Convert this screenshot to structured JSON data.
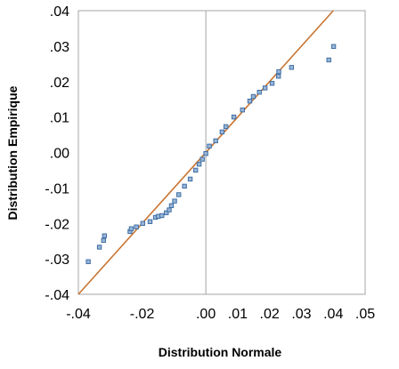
{
  "chart_data": {
    "type": "scatter",
    "title": "",
    "xlabel": "Distribution Normale",
    "ylabel": "Distribution Empirique",
    "xlim": [
      -0.04,
      0.05
    ],
    "ylim": [
      -0.04,
      0.04
    ],
    "x_ticks": [
      -0.04,
      -0.02,
      0.0,
      0.01,
      0.02,
      0.03,
      0.04,
      0.05
    ],
    "x_tick_labels": [
      "-.04",
      "-.02",
      ".00",
      ".01",
      ".02",
      ".03",
      ".04",
      ".05"
    ],
    "y_ticks": [
      0.04,
      0.03,
      0.02,
      0.01,
      0.0,
      -0.01,
      -0.02,
      -0.03,
      -0.04
    ],
    "y_tick_labels": [
      ".04",
      ".03",
      ".02",
      ".01",
      ".00",
      "-.01",
      "-.02",
      "-.03",
      "-.04"
    ],
    "grid": false,
    "legend": "none",
    "colors": {
      "points": "#3f6fa6",
      "line": "#c87533",
      "frame": "#a6a6a6"
    },
    "reference_line": {
      "x": [
        -0.04,
        0.04
      ],
      "y": [
        -0.04,
        0.04
      ]
    },
    "points": {
      "x": [
        -0.0369,
        -0.0334,
        -0.0321,
        -0.0318,
        -0.0238,
        -0.0234,
        -0.0218,
        -0.0198,
        -0.0175,
        -0.0158,
        -0.0149,
        -0.0138,
        -0.0124,
        -0.0115,
        -0.0108,
        -0.0098,
        -0.0085,
        -0.0067,
        -0.0049,
        -0.0032,
        -0.0021,
        -0.0011,
        0.0,
        0.0011,
        0.0031,
        0.0051,
        0.0063,
        0.0088,
        0.0115,
        0.0138,
        0.0149,
        0.0168,
        0.0186,
        0.0208,
        0.0228,
        0.0229,
        0.0269,
        0.0386,
        0.0401
      ],
      "y": [
        -0.0308,
        -0.0267,
        -0.0248,
        -0.0235,
        -0.0223,
        -0.0215,
        -0.021,
        -0.02,
        -0.0195,
        -0.0183,
        -0.018,
        -0.0178,
        -0.017,
        -0.0162,
        -0.015,
        -0.0137,
        -0.0119,
        -0.0095,
        -0.0075,
        -0.005,
        -0.0033,
        -0.0019,
        -0.0003,
        0.0018,
        0.0033,
        0.0058,
        0.0073,
        0.01,
        0.012,
        0.0145,
        0.0158,
        0.017,
        0.0182,
        0.0195,
        0.0215,
        0.0228,
        0.024,
        0.0261,
        0.0299
      ]
    }
  }
}
